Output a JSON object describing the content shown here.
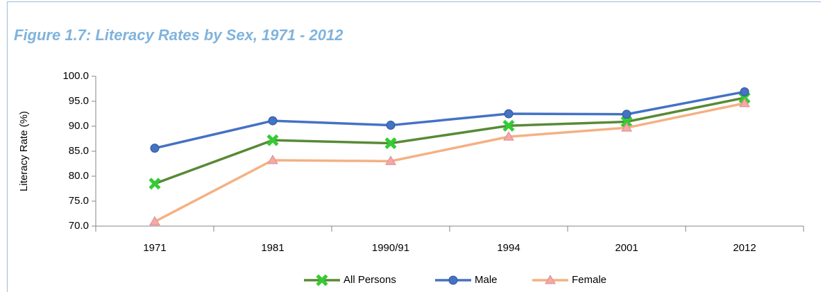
{
  "chart_data": {
    "type": "line",
    "title": "Figure 1.7:  Literacy Rates by Sex, 1971 - 2012",
    "y_label": "Literacy Rate (%)",
    "categories": [
      "1971",
      "1981",
      "1990/91",
      "1994",
      "2001",
      "2012"
    ],
    "series": [
      {
        "name": "All Persons",
        "color": "#588a35",
        "marker_color": "#33cc33",
        "marker": "x",
        "values": [
          78.5,
          87.2,
          86.6,
          90.1,
          90.9,
          95.7
        ]
      },
      {
        "name": "Male",
        "color": "#4472c4",
        "marker_color": "#4472c4",
        "marker": "circle",
        "values": [
          85.6,
          91.1,
          90.2,
          92.5,
          92.4,
          96.9
        ]
      },
      {
        "name": "Female",
        "color": "#f4b183",
        "marker_color": "#f4a8a8",
        "marker": "triangle",
        "values": [
          70.9,
          83.2,
          83.0,
          87.9,
          89.7,
          94.6
        ]
      }
    ],
    "ylim": [
      70,
      100
    ],
    "yticks": [
      {
        "value": 70,
        "label": "70.0"
      },
      {
        "value": 75,
        "label": "75.0"
      },
      {
        "value": 80,
        "label": "80.0"
      },
      {
        "value": 85,
        "label": "85.0"
      },
      {
        "value": 90,
        "label": "90.0"
      },
      {
        "value": 95,
        "label": "95.0"
      },
      {
        "value": 100,
        "label": "100.0"
      }
    ],
    "grid": false,
    "legend": "bottom"
  }
}
